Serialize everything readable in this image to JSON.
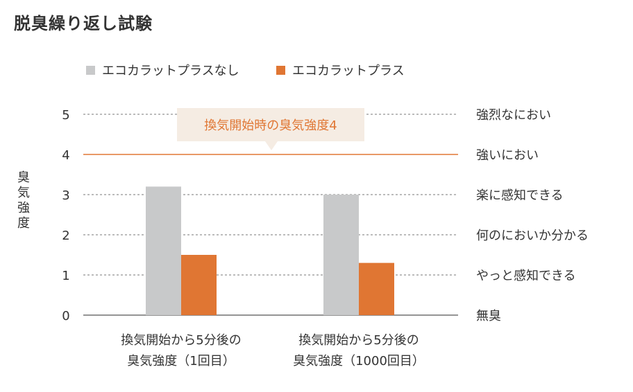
{
  "page_title": "脱臭繰り返し試験",
  "chart_data": {
    "type": "bar",
    "title": "脱臭繰り返し試験",
    "ylabel": "臭気強度",
    "xlabel": "",
    "ylim": [
      0,
      5
    ],
    "yticks": [
      0,
      1,
      2,
      3,
      4,
      5
    ],
    "right_labels": [
      "無臭",
      "やっと感知できる",
      "何のにおいか分かる",
      "楽に感知できる",
      "強いにおい",
      "強烈なにおい"
    ],
    "categories": [
      [
        "換気開始から5分後の",
        "臭気強度（1回目）"
      ],
      [
        "換気開始から5分後の",
        "臭気強度（1000回目）"
      ]
    ],
    "series": [
      {
        "name": "エコカラットプラスなし",
        "color": "#c8c9ca",
        "values": [
          3.2,
          3.0
        ]
      },
      {
        "name": "エコカラットプラス",
        "color": "#e07633",
        "values": [
          1.5,
          1.3
        ]
      }
    ],
    "reference_line": {
      "value": 4,
      "color": "#e07633",
      "label": "換気開始時の臭気強度4",
      "label_bg": "#f5ece3"
    },
    "grid": true,
    "legend_position": "top-left"
  }
}
